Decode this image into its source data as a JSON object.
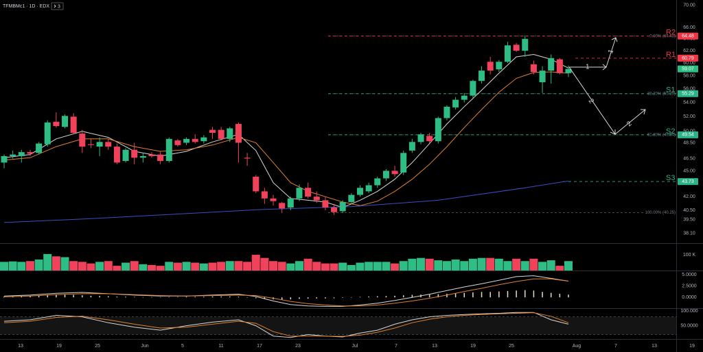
{
  "chart_data": {
    "type": "candlestick",
    "title": "TFMBMc1 · 1D · EDX",
    "badge": "3",
    "log": true,
    "ylim": [
      37.1,
      71.0
    ],
    "yticks": [
      {
        "value": 70,
        "label": "70.00"
      },
      {
        "value": 66,
        "label": "66.00"
      },
      {
        "value": 64,
        "label": "64.00"
      },
      {
        "value": 62,
        "label": "62.00"
      },
      {
        "value": 60,
        "label": "60.00"
      },
      {
        "value": 58,
        "label": "58.00"
      },
      {
        "value": 56,
        "label": "56.00"
      },
      {
        "value": 54,
        "label": "54.00"
      },
      {
        "value": 52,
        "label": "52.00"
      },
      {
        "value": 50,
        "label": "50.00"
      },
      {
        "value": 48.5,
        "label": "48.50"
      },
      {
        "value": 46.5,
        "label": "46.50"
      },
      {
        "value": 45,
        "label": "45.00"
      },
      {
        "value": 42,
        "label": "42.00"
      },
      {
        "value": 40.5,
        "label": "40.50"
      },
      {
        "value": 39.5,
        "label": "39.50"
      },
      {
        "value": 38.1,
        "label": "38.10"
      }
    ],
    "colors": {
      "up": "#2ebd85",
      "down": "#f0435b"
    },
    "candles": {
      "open": [
        46.0,
        46.8,
        46.8,
        47.3,
        47.2,
        48.3,
        51.3,
        50.6,
        52.0,
        49.7,
        48.3,
        48.0,
        48.6,
        48.0,
        46.2,
        47.6,
        46.6,
        47.0,
        47.0,
        46.2,
        48.8,
        48.5,
        49.0,
        48.7,
        50.2,
        50.2,
        49.0,
        51.0,
        46.6,
        44.3,
        42.6,
        41.8,
        41.3,
        40.8,
        41.8,
        43.0,
        42.0,
        41.6,
        40.8,
        40.4,
        41.4,
        42.2,
        42.6,
        43.3,
        44.1,
        45.0,
        44.8,
        47.5,
        48.6,
        49.4,
        48.7,
        51.8,
        53.3,
        54.4,
        55.0,
        57.2,
        60.2,
        59.0,
        60.2,
        63.0,
        62.0,
        59.8,
        57.0,
        58.8,
        60.6,
        58.4
      ],
      "high": [
        47.0,
        47.5,
        47.6,
        47.6,
        48.6,
        51.5,
        52.6,
        52.3,
        52.5,
        50.2,
        49.0,
        49.2,
        49.0,
        48.4,
        47.8,
        48.5,
        47.2,
        47.3,
        47.4,
        49.2,
        49.0,
        49.2,
        49.6,
        49.5,
        50.6,
        50.6,
        50.6,
        51.2,
        47.2,
        44.5,
        43.0,
        42.2,
        41.4,
        42.0,
        43.4,
        43.6,
        42.6,
        42.0,
        41.2,
        41.6,
        42.4,
        43.3,
        43.6,
        44.3,
        45.2,
        45.6,
        47.5,
        49.0,
        49.8,
        49.8,
        52.0,
        53.6,
        54.8,
        55.4,
        57.4,
        59.5,
        61.0,
        60.5,
        63.5,
        63.3,
        64.6,
        60.4,
        59.5,
        61.4,
        60.8,
        59.6
      ],
      "low": [
        45.3,
        46.5,
        46.0,
        46.8,
        47.0,
        48.0,
        50.5,
        50.4,
        49.6,
        47.2,
        47.8,
        46.8,
        47.6,
        45.8,
        46.0,
        45.8,
        46.0,
        46.6,
        45.8,
        46.0,
        48.0,
        48.2,
        48.4,
        48.4,
        49.0,
        48.8,
        48.6,
        46.0,
        45.6,
        42.4,
        41.2,
        41.0,
        40.2,
        40.5,
        41.5,
        41.8,
        41.3,
        40.5,
        40.0,
        40.2,
        41.2,
        42.0,
        42.4,
        43.0,
        43.8,
        44.3,
        44.5,
        47.2,
        48.3,
        48.5,
        48.4,
        51.5,
        53.0,
        54.0,
        54.7,
        56.8,
        58.2,
        58.6,
        60.0,
        61.8,
        61.0,
        58.2,
        55.4,
        56.8,
        58.2,
        57.8
      ],
      "close": [
        46.8,
        47.0,
        47.3,
        47.1,
        48.4,
        51.2,
        50.7,
        52.1,
        49.8,
        48.0,
        48.2,
        48.6,
        48.0,
        46.0,
        47.6,
        46.6,
        46.8,
        46.8,
        46.2,
        49.0,
        48.2,
        49.0,
        48.6,
        49.2,
        49.8,
        49.0,
        50.4,
        48.5,
        46.5,
        42.6,
        41.8,
        41.5,
        40.7,
        41.8,
        43.0,
        42.0,
        41.6,
        40.8,
        40.3,
        41.4,
        42.2,
        43.0,
        43.3,
        44.1,
        45.0,
        44.6,
        47.2,
        48.6,
        49.6,
        48.7,
        51.8,
        53.4,
        54.4,
        55.0,
        57.2,
        58.8,
        58.8,
        60.2,
        62.9,
        62.0,
        64.0,
        58.6,
        58.8,
        60.8,
        58.4,
        59.07
      ]
    },
    "ma": [
      {
        "color": "#d9d9d9",
        "x": [
          0,
          3,
          6,
          9,
          12,
          15,
          18,
          21,
          24,
          27,
          29,
          31,
          33,
          35,
          37,
          39,
          41,
          43,
          45,
          47,
          49,
          51,
          53,
          55,
          57,
          59,
          61,
          63,
          65
        ],
        "values": [
          46.6,
          47.0,
          49.0,
          50.0,
          49.2,
          47.4,
          46.8,
          47.4,
          48.6,
          49.6,
          47.5,
          43.6,
          41.8,
          41.6,
          41.4,
          40.8,
          41.6,
          42.6,
          44.0,
          46.0,
          48.4,
          51.0,
          53.4,
          55.8,
          58.4,
          61.0,
          61.4,
          60.6,
          59.2
        ]
      },
      {
        "color": "#e0822f",
        "x": [
          0,
          3,
          6,
          9,
          12,
          15,
          18,
          21,
          24,
          27,
          29,
          31,
          33,
          35,
          37,
          39,
          41,
          43,
          45,
          47,
          49,
          51,
          53,
          55,
          57,
          59,
          61,
          63,
          65
        ],
        "values": [
          46.3,
          46.6,
          48.0,
          49.0,
          49.0,
          48.0,
          47.4,
          47.6,
          48.2,
          49.2,
          48.5,
          46.0,
          43.6,
          42.6,
          42.0,
          41.4,
          41.0,
          41.5,
          42.6,
          44.0,
          45.8,
          48.0,
          50.5,
          53.0,
          55.5,
          57.6,
          58.5,
          58.6,
          58.4
        ]
      },
      {
        "color": "#3b4fc4",
        "x": [
          0,
          10,
          20,
          30,
          40,
          50,
          60,
          65
        ],
        "values": [
          39.2,
          39.6,
          40.1,
          40.6,
          40.9,
          41.6,
          43.0,
          43.8
        ]
      }
    ],
    "levels": [
      {
        "name": "R2",
        "value": 64.48,
        "color": "#f23645"
      },
      {
        "name": "R1",
        "value": 60.79,
        "color": "#f23645"
      },
      {
        "name": "S1",
        "value": 55.29,
        "color": "#2bb38a"
      },
      {
        "name": "S2",
        "value": 49.54,
        "color": "#2bb38a"
      },
      {
        "name": "S3",
        "value": 43.73,
        "color": "#2bb38a"
      }
    ],
    "fib": [
      {
        "value": 64.48,
        "label": "0.00% (64.48)"
      },
      {
        "value": 55.29,
        "label": "38.20% (55.29)"
      },
      {
        "value": 49.54,
        "label": "61.80% (49.54)"
      },
      {
        "value": 40.25,
        "label": "100.00% (40.25)"
      }
    ],
    "last_price": 59.07,
    "annotations": [
      "1",
      "1",
      "2",
      "2"
    ],
    "volume": {
      "ylim": [
        0,
        170
      ],
      "yticks": [
        {
          "value": 100,
          "label": "100 K"
        }
      ],
      "values": [
        55,
        58,
        55,
        60,
        70,
        105,
        90,
        85,
        60,
        55,
        45,
        55,
        60,
        30,
        50,
        60,
        40,
        35,
        30,
        55,
        50,
        55,
        50,
        45,
        50,
        55,
        60,
        60,
        55,
        100,
        80,
        60,
        55,
        45,
        60,
        75,
        55,
        45,
        45,
        50,
        35,
        50,
        55,
        55,
        55,
        45,
        60,
        75,
        80,
        75,
        65,
        60,
        70,
        60,
        75,
        80,
        80,
        75,
        60,
        75,
        60,
        75,
        55,
        65,
        30,
        60
      ]
    },
    "macd": {
      "ylim": [
        -2.4,
        5.8
      ],
      "yticks": [
        {
          "value": 5,
          "label": "5.0000"
        },
        {
          "value": 2.5,
          "label": "2.5000"
        },
        {
          "value": 0,
          "label": "0.0000"
        }
      ],
      "histogram_color": "#e8e0c0",
      "histogram": [
        0.2,
        0.25,
        0.3,
        0.3,
        0.35,
        0.45,
        0.55,
        0.6,
        0.55,
        0.45,
        0.35,
        0.3,
        0.25,
        0.15,
        0.15,
        0.1,
        0.05,
        0.05,
        0.05,
        0.1,
        0.1,
        0.15,
        0.15,
        0.15,
        0.2,
        0.2,
        0.2,
        0.15,
        0.0,
        -0.2,
        -0.35,
        -0.45,
        -0.5,
        -0.45,
        -0.35,
        -0.3,
        -0.25,
        -0.25,
        -0.2,
        -0.1,
        0.0,
        0.1,
        0.2,
        0.25,
        0.3,
        0.35,
        0.45,
        0.55,
        0.6,
        0.6,
        0.7,
        0.8,
        0.9,
        1.0,
        1.1,
        1.2,
        1.2,
        1.3,
        1.4,
        1.5,
        1.6,
        1.5,
        1.2,
        1.0,
        0.8,
        0.6
      ],
      "lines": [
        {
          "color": "#d9d9d9",
          "x": [
            0,
            3,
            6,
            9,
            12,
            15,
            18,
            21,
            24,
            27,
            29,
            31,
            33,
            35,
            37,
            39,
            41,
            43,
            45,
            47,
            49,
            51,
            53,
            55,
            57,
            59,
            61,
            63,
            65
          ],
          "values": [
            0.3,
            0.5,
            0.9,
            1.1,
            0.8,
            0.5,
            0.3,
            0.3,
            0.5,
            0.7,
            0.2,
            -0.8,
            -1.6,
            -1.9,
            -2.0,
            -2.0,
            -1.7,
            -1.3,
            -0.7,
            0.0,
            0.7,
            1.5,
            2.3,
            3.0,
            3.8,
            4.6,
            4.8,
            4.2,
            3.6
          ]
        },
        {
          "color": "#e0822f",
          "x": [
            0,
            3,
            6,
            9,
            12,
            15,
            18,
            21,
            24,
            27,
            29,
            31,
            33,
            35,
            37,
            39,
            41,
            43,
            45,
            47,
            49,
            51,
            53,
            55,
            57,
            59,
            61,
            63,
            65
          ],
          "values": [
            0.1,
            0.3,
            0.6,
            0.8,
            0.8,
            0.6,
            0.4,
            0.3,
            0.4,
            0.5,
            0.4,
            -0.2,
            -0.9,
            -1.4,
            -1.7,
            -1.9,
            -1.9,
            -1.7,
            -1.3,
            -0.8,
            -0.2,
            0.5,
            1.3,
            2.0,
            2.8,
            3.5,
            4.1,
            4.1,
            3.6
          ]
        }
      ]
    },
    "stoch": {
      "ylim": [
        5,
        107
      ],
      "yticks": [
        {
          "value": 100,
          "label": "100.000"
        },
        {
          "value": 50,
          "label": "50.0000"
        }
      ],
      "bands": [
        20,
        80
      ],
      "lines": [
        {
          "color": "#d9d9d9",
          "x": [
            0,
            3,
            6,
            9,
            12,
            15,
            18,
            21,
            24,
            27,
            29,
            31,
            33,
            35,
            37,
            39,
            41,
            43,
            45,
            47,
            49,
            51,
            53,
            55,
            57,
            59,
            61,
            63,
            65
          ],
          "values": [
            65,
            70,
            85,
            80,
            60,
            45,
            35,
            50,
            62,
            70,
            50,
            15,
            10,
            20,
            15,
            12,
            25,
            35,
            55,
            70,
            80,
            85,
            88,
            90,
            92,
            95,
            95,
            70,
            55
          ]
        },
        {
          "color": "#e0822f",
          "x": [
            0,
            3,
            6,
            9,
            12,
            15,
            18,
            21,
            24,
            27,
            29,
            31,
            33,
            35,
            37,
            39,
            41,
            43,
            45,
            47,
            49,
            51,
            53,
            55,
            57,
            59,
            61,
            63,
            65
          ],
          "values": [
            60,
            65,
            78,
            82,
            70,
            55,
            42,
            45,
            55,
            65,
            58,
            30,
            15,
            15,
            15,
            14,
            18,
            28,
            42,
            60,
            72,
            80,
            85,
            88,
            90,
            92,
            94,
            82,
            60
          ]
        }
      ]
    },
    "xaxis": {
      "labels": [
        "13",
        "19",
        "25",
        "Jun",
        "5",
        "11",
        "17",
        "23",
        "Jul",
        "7",
        "13",
        "19",
        "25",
        "Aug",
        "7",
        "13",
        "19"
      ]
    }
  }
}
